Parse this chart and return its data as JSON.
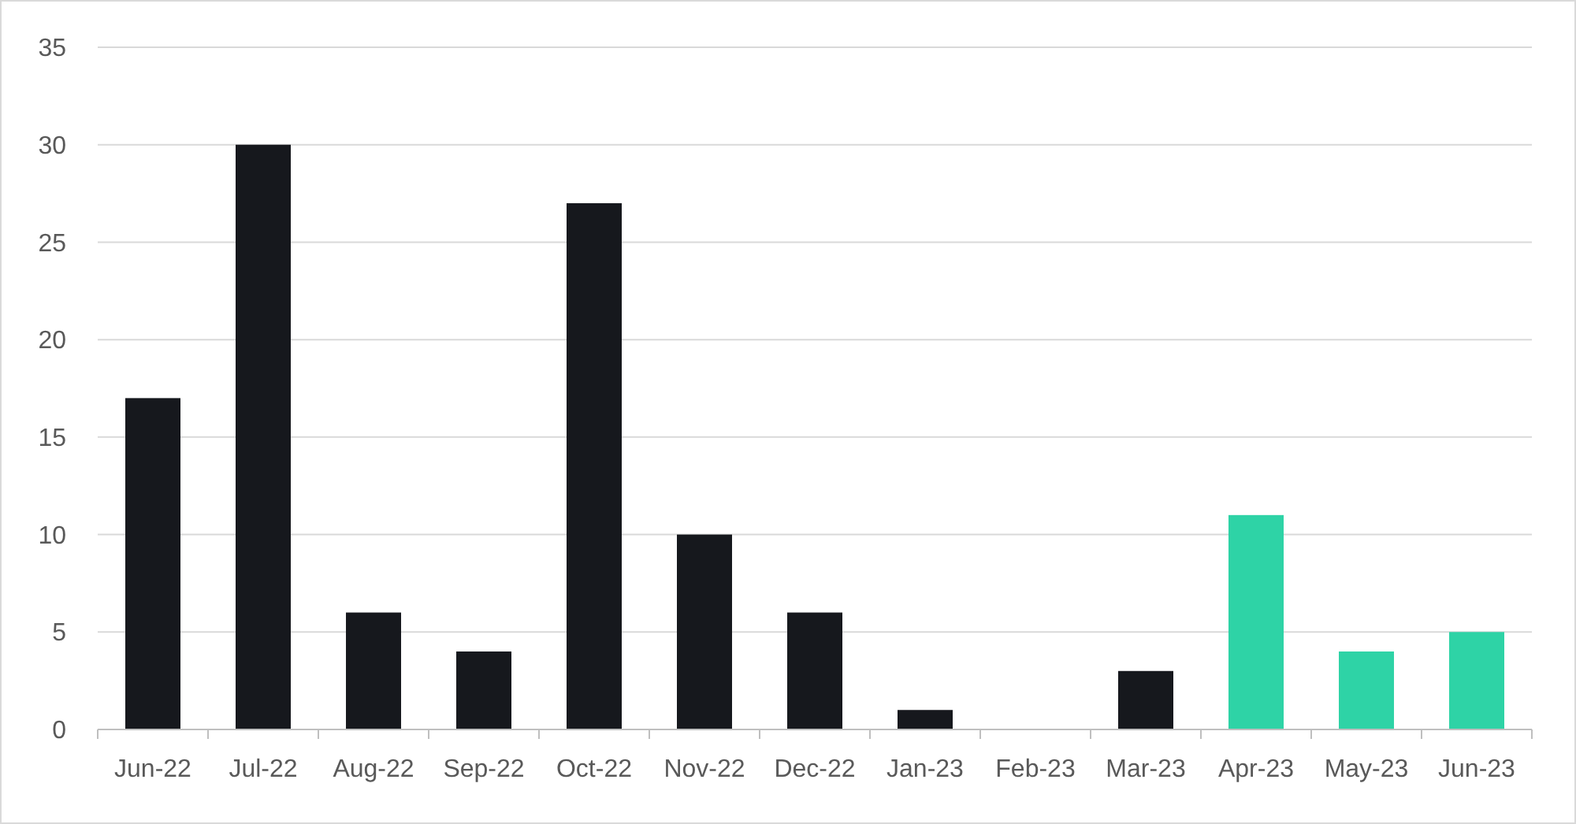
{
  "chart_data": {
    "type": "bar",
    "categories": [
      "Jun-22",
      "Jul-22",
      "Aug-22",
      "Sep-22",
      "Oct-22",
      "Nov-22",
      "Dec-22",
      "Jan-23",
      "Feb-23",
      "Mar-23",
      "Apr-23",
      "May-23",
      "Jun-23"
    ],
    "values": [
      17,
      30,
      6,
      4,
      27,
      10,
      6,
      1,
      0,
      3,
      11,
      4,
      5
    ],
    "colors": [
      "#16181d",
      "#16181d",
      "#16181d",
      "#16181d",
      "#16181d",
      "#16181d",
      "#16181d",
      "#16181d",
      "#16181d",
      "#16181d",
      "#2ed3a6",
      "#2ed3a6",
      "#2ed3a6"
    ],
    "ylim": [
      0,
      35
    ],
    "yticks": [
      0,
      5,
      10,
      15,
      20,
      25,
      30,
      35
    ],
    "grid": "y"
  }
}
